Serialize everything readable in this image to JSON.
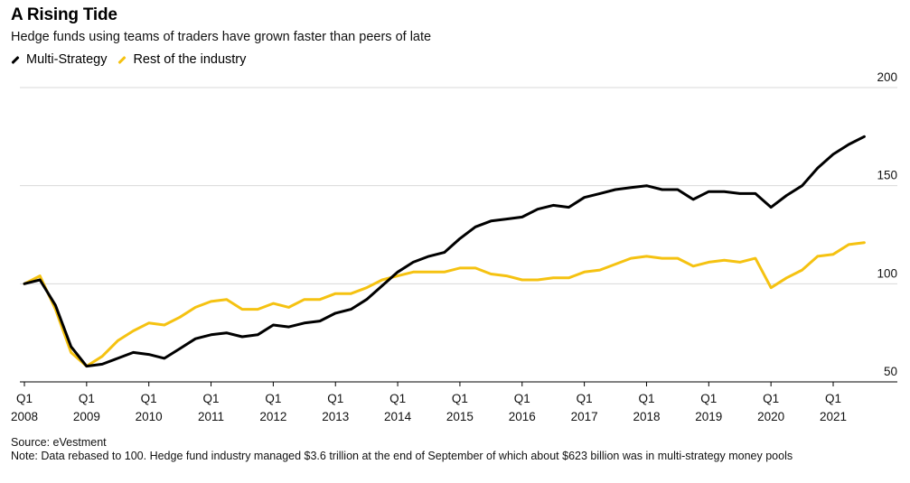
{
  "title": "A Rising Tide",
  "subtitle": "Hedge funds using teams of traders have grown faster than peers of late",
  "legend": [
    {
      "label": "Multi-Strategy",
      "color": "#000000"
    },
    {
      "label": "Rest of the industry",
      "color": "#f5c211"
    }
  ],
  "footer": {
    "source": "Source: eVestment",
    "note": "Note: Data rebased to 100. Hedge fund industry managed $3.6 trillion at the end of September of which about $623 billion was in multi-strategy money pools"
  },
  "chart_data": {
    "type": "line",
    "x_unit": "quarter",
    "ylim": [
      50,
      200
    ],
    "yticks": [
      50,
      100,
      150,
      200
    ],
    "grid": true,
    "legend_position": "top-left",
    "xtick_labels": [
      {
        "q": "Q1",
        "year": "2008"
      },
      {
        "q": "Q1",
        "year": "2009"
      },
      {
        "q": "Q1",
        "year": "2010"
      },
      {
        "q": "Q1",
        "year": "2011"
      },
      {
        "q": "Q1",
        "year": "2012"
      },
      {
        "q": "Q1",
        "year": "2013"
      },
      {
        "q": "Q1",
        "year": "2014"
      },
      {
        "q": "Q1",
        "year": "2015"
      },
      {
        "q": "Q1",
        "year": "2016"
      },
      {
        "q": "Q1",
        "year": "2017"
      },
      {
        "q": "Q1",
        "year": "2018"
      },
      {
        "q": "Q1",
        "year": "2019"
      },
      {
        "q": "Q1",
        "year": "2020"
      },
      {
        "q": "Q1",
        "year": "2021"
      }
    ],
    "x": [
      "2008 Q1",
      "2008 Q2",
      "2008 Q3",
      "2008 Q4",
      "2009 Q1",
      "2009 Q2",
      "2009 Q3",
      "2009 Q4",
      "2010 Q1",
      "2010 Q2",
      "2010 Q3",
      "2010 Q4",
      "2011 Q1",
      "2011 Q2",
      "2011 Q3",
      "2011 Q4",
      "2012 Q1",
      "2012 Q2",
      "2012 Q3",
      "2012 Q4",
      "2013 Q1",
      "2013 Q2",
      "2013 Q3",
      "2013 Q4",
      "2014 Q1",
      "2014 Q2",
      "2014 Q3",
      "2014 Q4",
      "2015 Q1",
      "2015 Q2",
      "2015 Q3",
      "2015 Q4",
      "2016 Q1",
      "2016 Q2",
      "2016 Q3",
      "2016 Q4",
      "2017 Q1",
      "2017 Q2",
      "2017 Q3",
      "2017 Q4",
      "2018 Q1",
      "2018 Q2",
      "2018 Q3",
      "2018 Q4",
      "2019 Q1",
      "2019 Q2",
      "2019 Q3",
      "2019 Q4",
      "2020 Q1",
      "2020 Q2",
      "2020 Q3",
      "2020 Q4",
      "2021 Q1",
      "2021 Q2",
      "2021 Q3"
    ],
    "series": [
      {
        "name": "Multi-Strategy",
        "color": "#000000",
        "values": [
          100,
          102,
          89,
          68,
          58,
          59,
          62,
          65,
          64,
          62,
          67,
          72,
          74,
          75,
          73,
          74,
          79,
          78,
          80,
          81,
          85,
          87,
          92,
          99,
          106,
          111,
          114,
          116,
          123,
          129,
          132,
          133,
          134,
          138,
          140,
          139,
          144,
          146,
          148,
          149,
          150,
          148,
          148,
          143,
          147,
          147,
          146,
          146,
          139,
          145,
          150,
          159,
          166,
          171,
          175
        ]
      },
      {
        "name": "Rest of the industry",
        "color": "#f5c211",
        "values": [
          100,
          104,
          87,
          65,
          58,
          63,
          71,
          76,
          80,
          79,
          83,
          88,
          91,
          92,
          87,
          87,
          90,
          88,
          92,
          92,
          95,
          95,
          98,
          102,
          104,
          106,
          106,
          106,
          108,
          108,
          105,
          104,
          102,
          102,
          103,
          103,
          106,
          107,
          110,
          113,
          114,
          113,
          113,
          109,
          111,
          112,
          111,
          113,
          98,
          103,
          107,
          114,
          115,
          120,
          121
        ]
      }
    ]
  }
}
